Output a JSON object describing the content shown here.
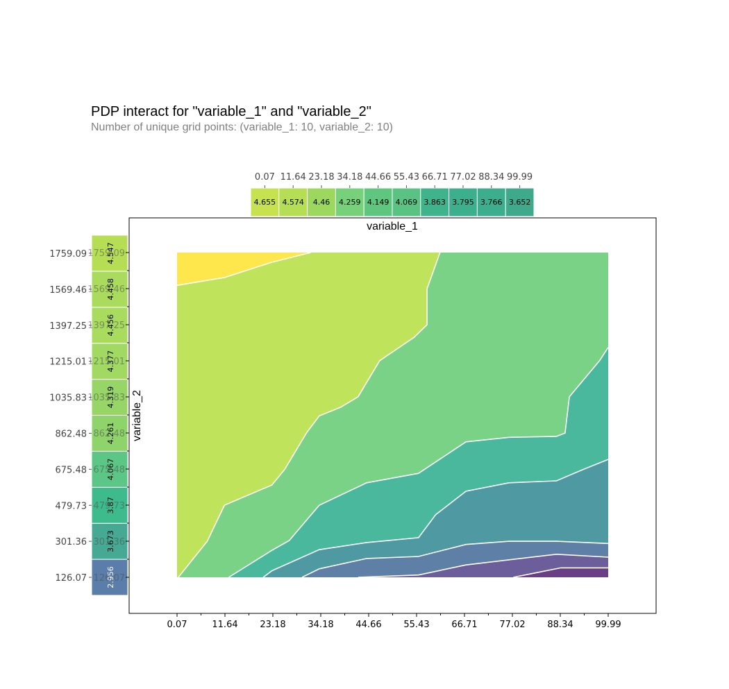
{
  "header": {
    "title": "PDP interact for \"variable_1\" and \"variable_2\"",
    "subtitle": "Number of unique grid points: (variable_1: 10, variable_2: 10)"
  },
  "chart_data": {
    "type": "heatmap",
    "xlabel": "variable_1",
    "ylabel": "variable_2",
    "x_ticks": [
      "0.07",
      "11.64",
      "23.18",
      "34.18",
      "44.66",
      "55.43",
      "66.71",
      "77.02",
      "88.34",
      "99.99"
    ],
    "y_ticks": [
      "126.07",
      "301.36",
      "479.73",
      "675.48",
      "862.48",
      "1035.83",
      "1215.01",
      "1397.25",
      "1569.46",
      "1759.09"
    ],
    "x_marginal": {
      "values": [
        4.655,
        4.574,
        4.46,
        4.259,
        4.149,
        4.069,
        3.863,
        3.795,
        3.766,
        3.652
      ],
      "colors": [
        "#c7e24f",
        "#b5de55",
        "#9dd85e",
        "#77d07a",
        "#5fc67f",
        "#5ac384",
        "#3fb38c",
        "#3caf8d",
        "#3dae8d",
        "#3ea98b"
      ]
    },
    "y_marginal": {
      "values": [
        2.956,
        3.673,
        3.87,
        4.067,
        4.261,
        4.319,
        4.377,
        4.456,
        4.458,
        4.547
      ],
      "colors": [
        "#5a7ea9",
        "#46a994",
        "#3ebb8c",
        "#5bc685",
        "#8fd46a",
        "#97d666",
        "#a1d962",
        "#a9db5e",
        "#aadb5d",
        "#b5de55"
      ]
    },
    "contour_levels": [
      {
        "color": "#6a3e86"
      },
      {
        "color": "#6c5e9b"
      },
      {
        "color": "#5e7fa6"
      },
      {
        "color": "#4f9aa2"
      },
      {
        "color": "#49b89c"
      },
      {
        "color": "#79d286"
      },
      {
        "color": "#bfe45b"
      },
      {
        "color": "#fde74c"
      }
    ],
    "grid": false,
    "legend": "none"
  }
}
